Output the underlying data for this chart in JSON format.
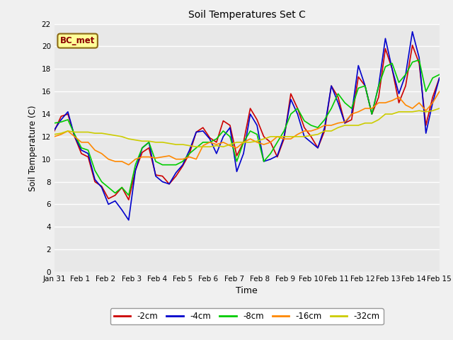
{
  "title": "Soil Temperatures Set C",
  "xlabel": "Time",
  "ylabel": "Soil Temperature (C)",
  "xlim": [
    0,
    15
  ],
  "ylim": [
    0,
    22
  ],
  "yticks": [
    0,
    2,
    4,
    6,
    8,
    10,
    12,
    14,
    16,
    18,
    20,
    22
  ],
  "xtick_labels": [
    "Jan 31",
    "Feb 1",
    "Feb 2",
    "Feb 3",
    "Feb 4",
    "Feb 5",
    "Feb 6",
    "Feb 7",
    "Feb 8",
    "Feb 9",
    "Feb 10",
    "Feb 11",
    "Feb 12",
    "Feb 13",
    "Feb 14",
    "Feb 15"
  ],
  "annotation": "BC_met",
  "fig_bg": "#f0f0f0",
  "plot_bg": "#e8e8e8",
  "series": {
    "-2cm": {
      "color": "#cc0000",
      "data": [
        12.5,
        13.8,
        14.0,
        12.0,
        10.5,
        10.2,
        8.0,
        7.6,
        6.5,
        6.8,
        7.5,
        6.4,
        9.0,
        10.6,
        11.0,
        8.6,
        8.5,
        7.8,
        8.5,
        9.4,
        10.5,
        12.4,
        12.8,
        11.9,
        11.5,
        13.4,
        13.0,
        10.3,
        11.5,
        14.5,
        13.5,
        12.0,
        11.5,
        10.2,
        11.8,
        15.8,
        14.5,
        12.8,
        12.0,
        11.0,
        12.5,
        16.5,
        15.5,
        13.2,
        13.5,
        17.3,
        16.5,
        14.0,
        15.5,
        19.8,
        18.0,
        15.0,
        16.5,
        20.1,
        18.5,
        13.0,
        15.5,
        17.2
      ]
    },
    "-4cm": {
      "color": "#0000cc",
      "data": [
        12.6,
        13.5,
        14.2,
        12.0,
        10.8,
        10.5,
        8.2,
        7.5,
        6.0,
        6.3,
        5.5,
        4.6,
        9.0,
        11.0,
        11.5,
        8.5,
        8.0,
        7.8,
        8.8,
        9.5,
        10.8,
        12.4,
        12.5,
        11.8,
        10.5,
        12.0,
        12.8,
        8.9,
        10.5,
        14.0,
        13.0,
        9.8,
        10.0,
        10.3,
        12.0,
        15.3,
        14.0,
        12.0,
        11.5,
        11.0,
        12.8,
        16.5,
        15.0,
        13.2,
        14.0,
        18.3,
        16.5,
        14.0,
        16.5,
        20.7,
        18.0,
        15.8,
        17.5,
        21.3,
        19.0,
        12.3,
        15.0,
        17.2
      ]
    },
    "-8cm": {
      "color": "#00cc00",
      "data": [
        13.2,
        13.3,
        13.5,
        12.2,
        11.0,
        10.8,
        9.0,
        8.0,
        7.5,
        7.0,
        7.5,
        6.8,
        9.5,
        11.0,
        11.5,
        9.8,
        9.5,
        9.5,
        9.5,
        9.8,
        10.5,
        11.0,
        11.5,
        11.5,
        11.8,
        12.5,
        12.0,
        9.8,
        11.5,
        12.5,
        12.2,
        9.8,
        10.5,
        11.5,
        12.5,
        14.0,
        14.5,
        13.4,
        13.0,
        12.8,
        13.5,
        14.5,
        15.8,
        15.0,
        14.5,
        16.3,
        16.5,
        14.0,
        16.5,
        18.2,
        18.5,
        16.8,
        17.5,
        18.6,
        18.8,
        16.0,
        17.2,
        17.5
      ]
    },
    "-16cm": {
      "color": "#ff8800",
      "data": [
        12.0,
        12.2,
        12.5,
        12.0,
        11.5,
        11.5,
        10.8,
        10.5,
        10.0,
        9.8,
        9.8,
        9.5,
        10.0,
        10.2,
        10.2,
        10.1,
        10.2,
        10.3,
        10.0,
        10.0,
        10.2,
        10.0,
        11.2,
        11.5,
        11.3,
        11.5,
        11.2,
        11.0,
        11.5,
        11.8,
        11.5,
        11.3,
        11.5,
        12.0,
        11.8,
        11.8,
        12.2,
        12.5,
        12.5,
        12.7,
        13.0,
        13.0,
        13.2,
        13.3,
        14.0,
        14.2,
        14.5,
        14.5,
        15.0,
        15.0,
        15.2,
        15.5,
        14.8,
        14.5,
        15.0,
        14.3,
        15.0,
        16.0
      ]
    },
    "-32cm": {
      "color": "#cccc00",
      "data": [
        12.2,
        12.3,
        12.5,
        12.4,
        12.4,
        12.4,
        12.3,
        12.3,
        12.2,
        12.1,
        12.0,
        11.8,
        11.7,
        11.6,
        11.6,
        11.5,
        11.5,
        11.4,
        11.3,
        11.3,
        11.2,
        11.1,
        11.1,
        11.1,
        11.2,
        11.1,
        11.3,
        11.5,
        11.5,
        11.5,
        11.6,
        11.8,
        12.0,
        12.0,
        12.0,
        12.0,
        12.0,
        12.0,
        12.1,
        12.2,
        12.5,
        12.5,
        12.8,
        13.0,
        13.0,
        13.0,
        13.2,
        13.2,
        13.5,
        14.0,
        14.0,
        14.2,
        14.2,
        14.2,
        14.3,
        14.2,
        14.3,
        14.5
      ]
    }
  }
}
